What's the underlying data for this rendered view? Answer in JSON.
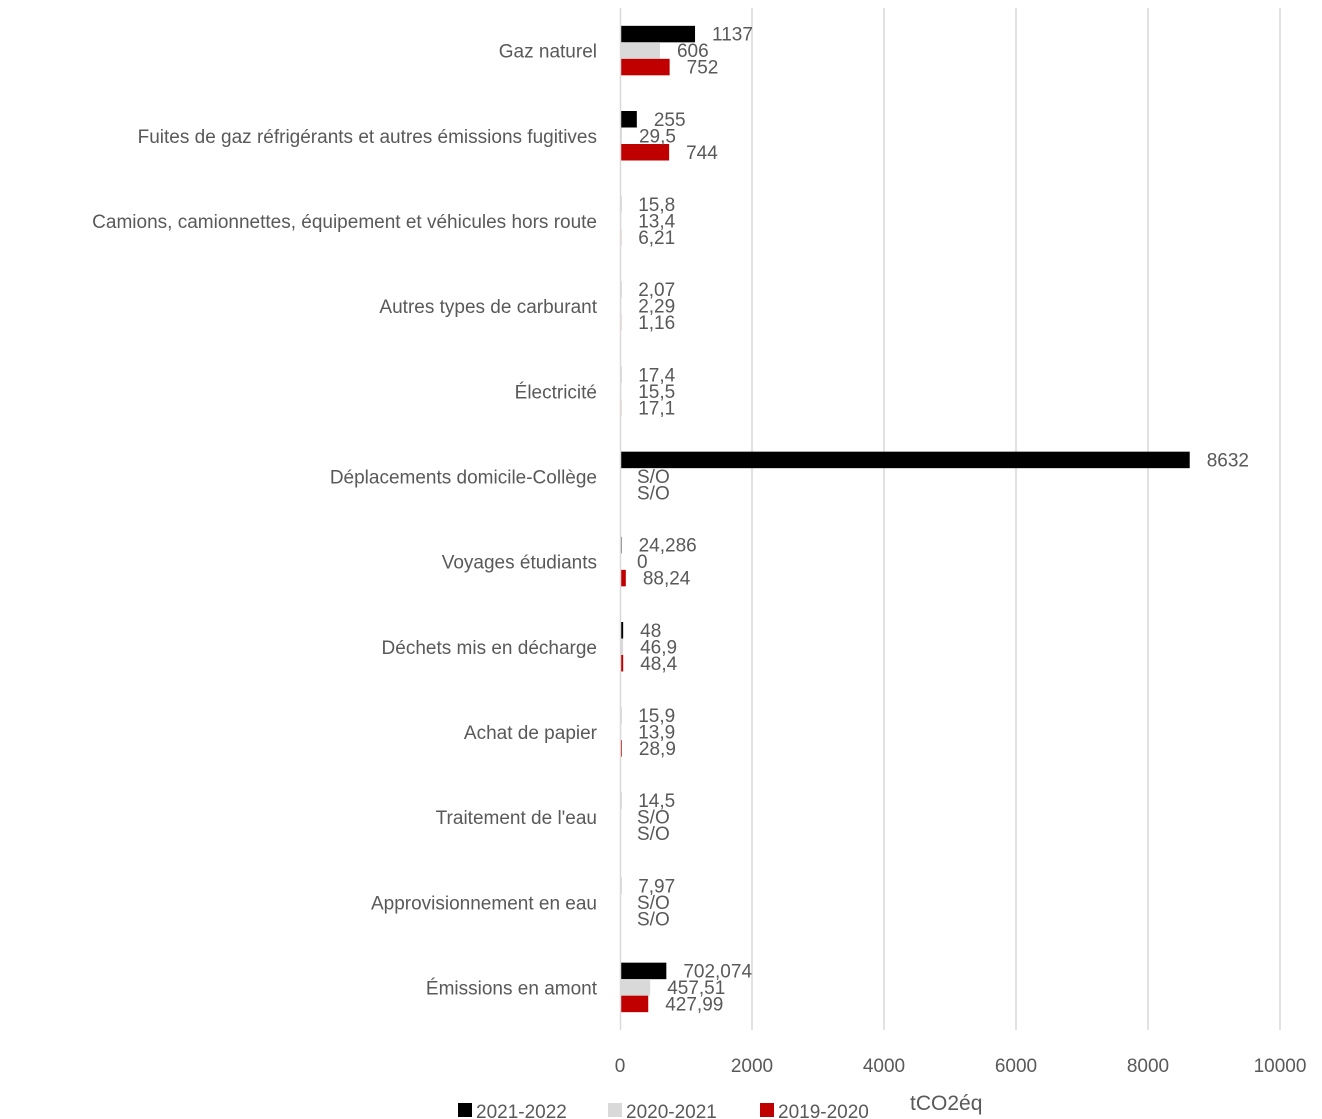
{
  "chart_data": {
    "type": "bar",
    "orientation": "horizontal",
    "categories": [
      "Gaz naturel",
      "Fuites de gaz réfrigérants et autres émissions fugitives",
      "Camions, camionnettes, équipement et véhicules hors route",
      "Autres types de carburant",
      "Électricité",
      "Déplacements domicile-Collège",
      "Voyages étudiants",
      "Déchets mis en décharge",
      "Achat de papier",
      "Traitement de l'eau",
      "Approvisionnement en eau",
      "Émissions en amont"
    ],
    "series": [
      {
        "name": "2021-2022",
        "color": "#000000",
        "values": [
          1137,
          255,
          15.8,
          2.07,
          17.4,
          8632,
          24.286,
          48,
          15.9,
          14.5,
          7.97,
          702.074
        ],
        "labels": [
          "1137",
          "255",
          "15,8",
          "2,07",
          "17,4",
          "8632",
          "24,286",
          "48",
          "15,9",
          "14,5",
          "7,97",
          "702,074"
        ]
      },
      {
        "name": "2020-2021",
        "color": "#d9d9d9",
        "values": [
          606,
          29.5,
          13.4,
          2.29,
          15.5,
          null,
          0,
          46.9,
          13.9,
          null,
          null,
          457.51
        ],
        "labels": [
          "606",
          "29,5",
          "13,4",
          "2,29",
          "15,5",
          "S/O",
          "0",
          "46,9",
          "13,9",
          "S/O",
          "S/O",
          "457,51"
        ]
      },
      {
        "name": "2019-2020",
        "color": "#c00000",
        "values": [
          752,
          744,
          6.21,
          1.16,
          17.1,
          null,
          88.24,
          48.4,
          28.9,
          null,
          null,
          427.99
        ],
        "labels": [
          "752",
          "744",
          "6,21",
          "1,16",
          "17,1",
          "S/O",
          "88,24",
          "48,4",
          "28,9",
          "S/O",
          "S/O",
          "427,99"
        ]
      }
    ],
    "x_ticks": [
      "0",
      "2000",
      "4000",
      "6000",
      "8000",
      "10000"
    ],
    "xlim": [
      0,
      10000
    ],
    "xlabel": "tCO2éq",
    "grid": "vertical",
    "legend_position": "bottom"
  }
}
